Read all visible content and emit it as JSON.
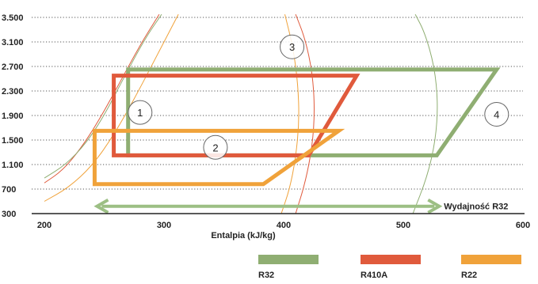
{
  "chart_data": {
    "type": "area",
    "xlabel": "Entalpia (kJ/kg)",
    "ylabel": "",
    "x_ticks": [
      200,
      300,
      400,
      500,
      600
    ],
    "y_ticks": [
      300,
      700,
      1100,
      1500,
      1900,
      2300,
      2700,
      3100,
      3500
    ],
    "y_tick_labels": [
      "300",
      "700",
      "1.100",
      "1.500",
      "1.900",
      "2.300",
      "2.700",
      "3.100",
      "3.500"
    ],
    "x_tick_labels": [
      "200",
      "300",
      "400",
      "500",
      "600"
    ],
    "xlim": [
      200,
      600
    ],
    "ylim": [
      300,
      3500
    ],
    "grid": "horizontal dotted",
    "colors": {
      "R32": "#8fae72",
      "R410A": "#e05a3c",
      "R22": "#f0a23a",
      "arrow": "#9cbf84",
      "axis": "#222222"
    },
    "series": [
      {
        "name": "R32",
        "color": "#8fae72",
        "polygon": [
          [
            270,
            1250
          ],
          [
            270,
            2650
          ],
          [
            578,
            2650
          ],
          [
            528,
            1250
          ]
        ]
      },
      {
        "name": "R410A",
        "color": "#e05a3c",
        "polygon": [
          [
            258,
            1250
          ],
          [
            258,
            2550
          ],
          [
            461,
            2550
          ],
          [
            421,
            1250
          ]
        ]
      },
      {
        "name": "R22",
        "color": "#f0a23a",
        "polygon": [
          [
            242,
            780
          ],
          [
            242,
            1650
          ],
          [
            446,
            1650
          ],
          [
            383,
            780
          ]
        ]
      }
    ],
    "saturation_curves": [
      {
        "color": "#e05a3c",
        "points": [
          [
            200,
            800
          ],
          [
            215,
            1000
          ],
          [
            230,
            1350
          ],
          [
            245,
            1800
          ],
          [
            262,
            2400
          ],
          [
            280,
            3050
          ],
          [
            296,
            3550
          ]
        ]
      },
      {
        "color": "#8fae72",
        "points": [
          [
            200,
            880
          ],
          [
            218,
            1100
          ],
          [
            235,
            1450
          ],
          [
            250,
            1900
          ],
          [
            266,
            2500
          ],
          [
            284,
            3150
          ],
          [
            298,
            3550
          ]
        ]
      },
      {
        "color": "#f0a23a",
        "points": [
          [
            200,
            500
          ],
          [
            220,
            720
          ],
          [
            240,
            1080
          ],
          [
            258,
            1580
          ],
          [
            276,
            2200
          ],
          [
            296,
            2950
          ],
          [
            312,
            3550
          ]
        ]
      },
      {
        "color": "#f0a23a",
        "points": [
          [
            398,
            300
          ],
          [
            405,
            700
          ],
          [
            410,
            1200
          ],
          [
            413,
            1800
          ],
          [
            412,
            2400
          ],
          [
            408,
            3000
          ],
          [
            401,
            3550
          ]
        ]
      },
      {
        "color": "#e05a3c",
        "points": [
          [
            410,
            300
          ],
          [
            418,
            800
          ],
          [
            424,
            1400
          ],
          [
            426,
            2000
          ],
          [
            424,
            2600
          ],
          [
            418,
            3150
          ],
          [
            410,
            3550
          ]
        ]
      },
      {
        "color": "#8fae72",
        "points": [
          [
            508,
            300
          ],
          [
            520,
            900
          ],
          [
            527,
            1500
          ],
          [
            529,
            2100
          ],
          [
            526,
            2700
          ],
          [
            518,
            3250
          ],
          [
            510,
            3550
          ]
        ]
      }
    ],
    "annotations": [
      {
        "label": "1",
        "x": 280,
        "y": 1950
      },
      {
        "label": "2",
        "x": 343,
        "y": 1380
      },
      {
        "label": "3",
        "x": 407,
        "y": 3020
      },
      {
        "label": "4",
        "x": 578,
        "y": 1920
      }
    ],
    "arrow": {
      "from": 244,
      "to": 530,
      "y": 420,
      "label": "Wydajność R32"
    },
    "legend": {
      "placement": "bottom",
      "entries": [
        {
          "name": "R32",
          "color": "#8fae72"
        },
        {
          "name": "R410A",
          "color": "#e05a3c"
        },
        {
          "name": "R22",
          "color": "#f0a23a"
        }
      ]
    }
  }
}
